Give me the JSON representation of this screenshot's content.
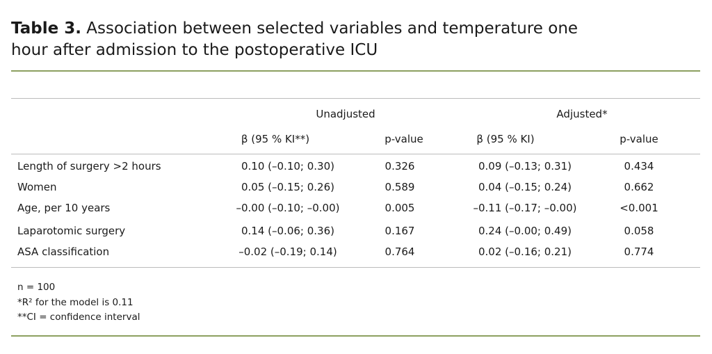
{
  "caption": {
    "label": "Table 3.",
    "text": "Association between selected variables and temperature one hour after admission to the postoperative ICU"
  },
  "table": {
    "group_headers": [
      "Unadjusted",
      "Adjusted*"
    ],
    "column_headers": [
      "β (95 % KI**)",
      "p-value",
      "β (95 % KI)",
      "p-value"
    ],
    "rows": [
      [
        "Length of surgery >2 hours",
        "0.10 (–0.10; 0.30)",
        "0.326",
        "0.09 (–0.13; 0.31)",
        "0.434"
      ],
      [
        "Women",
        "0.05 (–0.15; 0.26)",
        "0.589",
        "0.04 (–0.15; 0.24)",
        "0.662"
      ],
      [
        "Age, per 10 years",
        "–0.00 (–0.10; –0.00)",
        "0.005",
        "–0.11 (–0.17; –0.00)",
        "<0.001"
      ],
      [
        "Laparotomic surgery",
        "0.14 (–0.06; 0.36)",
        "0.167",
        "0.24 (–0.00; 0.49)",
        "0.058"
      ],
      [
        "ASA classification",
        "–0.02 (–0.19; 0.14)",
        "0.764",
        "0.02 (–0.16; 0.21)",
        "0.774"
      ]
    ]
  },
  "footnotes": [
    "n = 100",
    "*R² for the model is 0.11",
    "**CI = confidence interval"
  ]
}
